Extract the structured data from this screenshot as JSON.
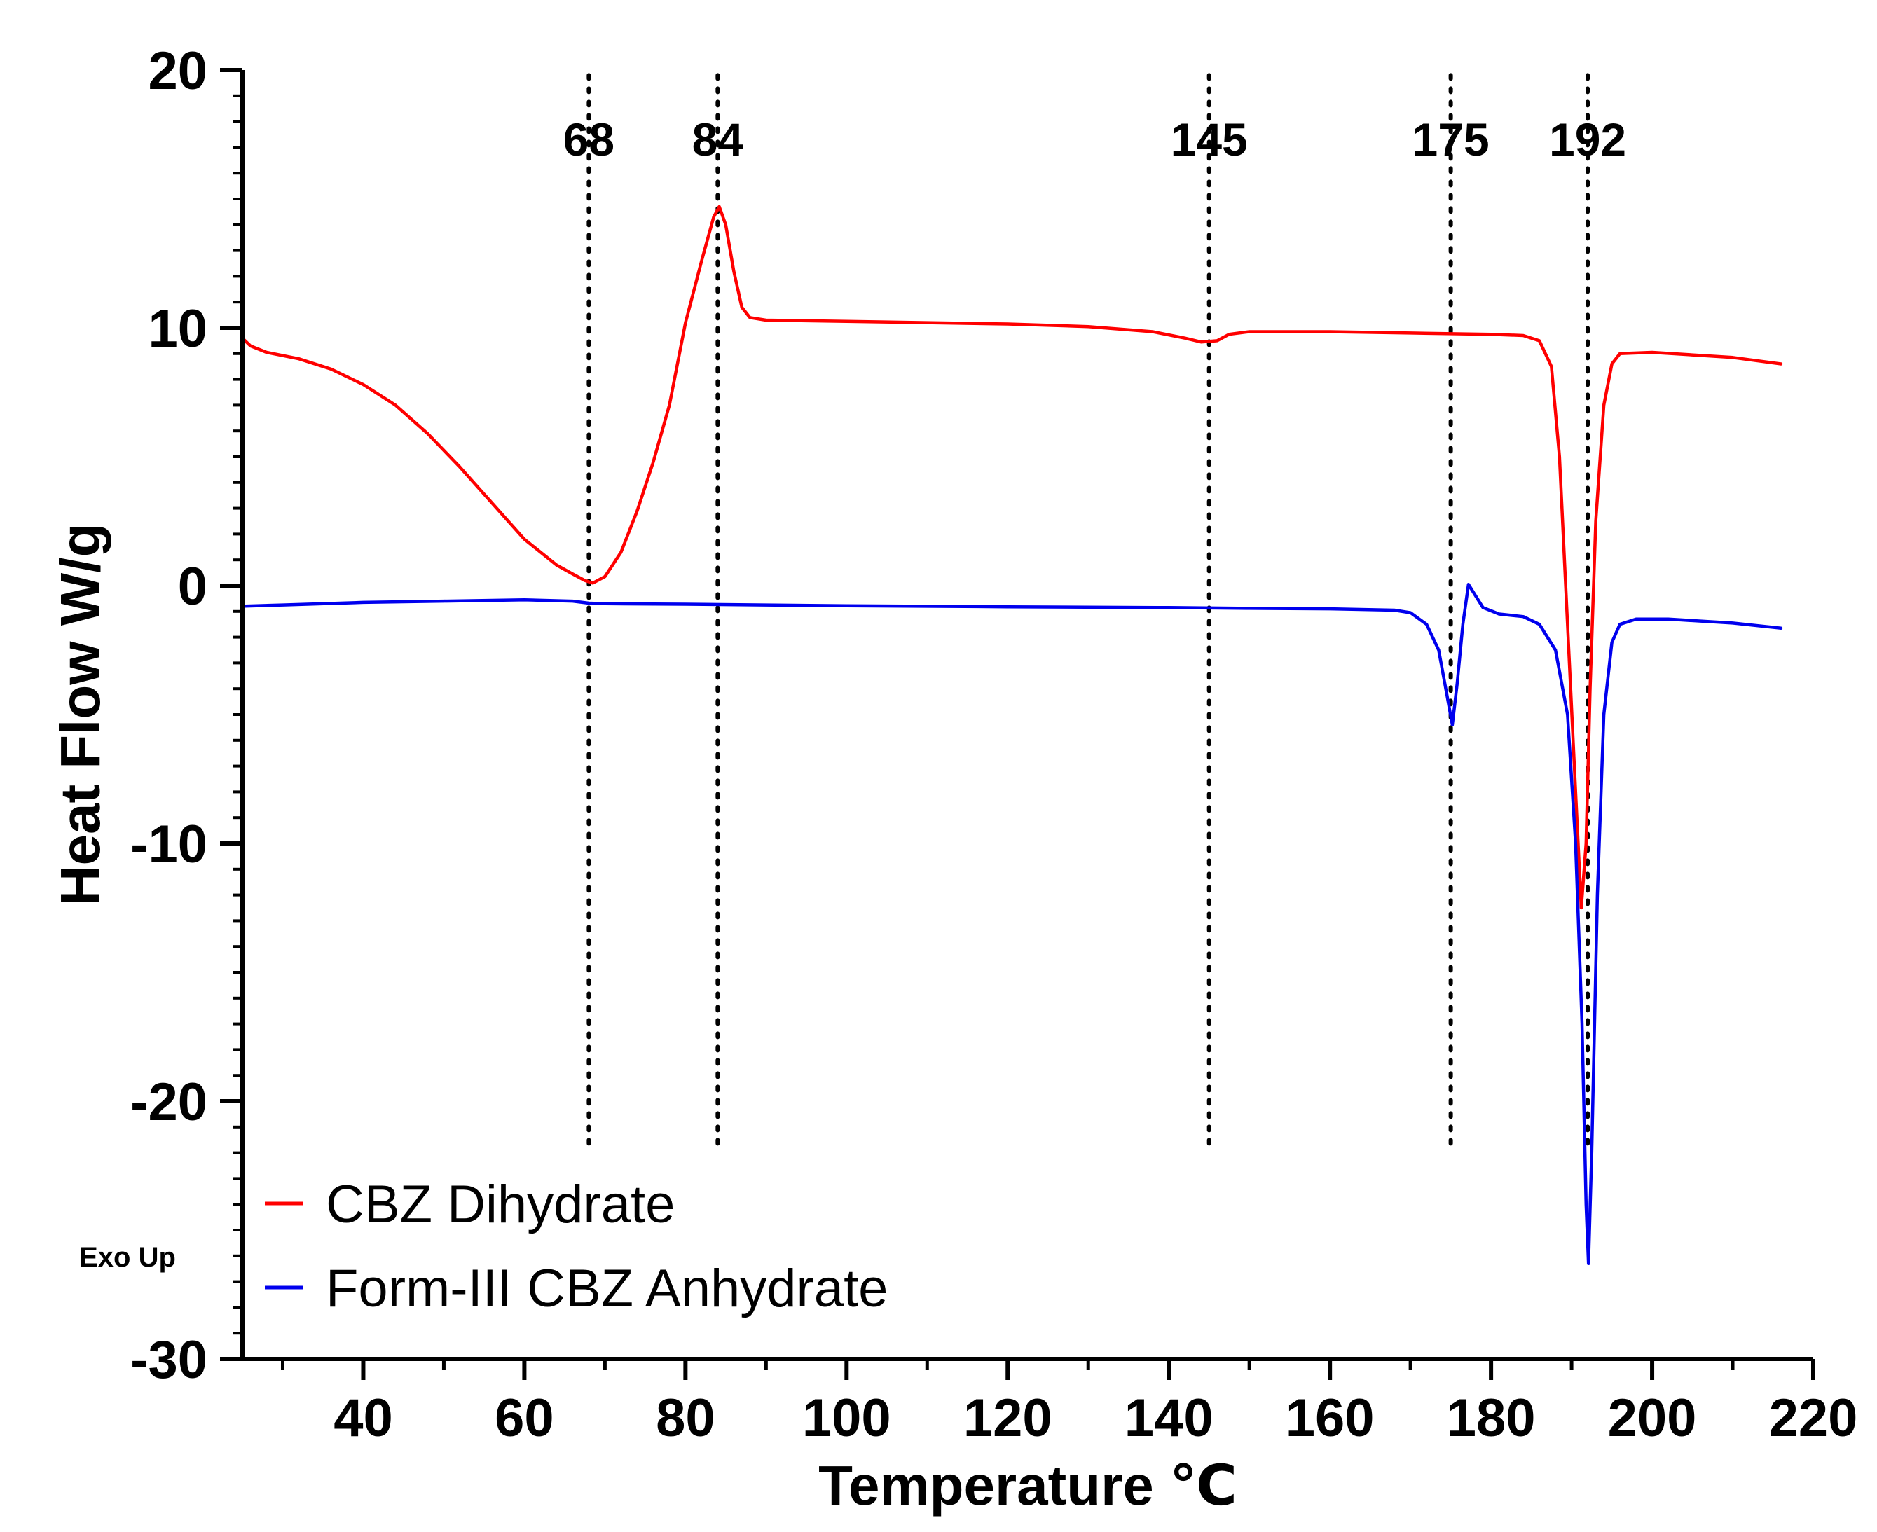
{
  "chart_data": {
    "type": "line",
    "title": "",
    "xlabel": "Temperature ℃",
    "ylabel": "Heat Flow W/g",
    "xlim": [
      25,
      220
    ],
    "ylim": [
      -30,
      20
    ],
    "xticks": [
      40,
      60,
      80,
      100,
      120,
      140,
      160,
      180,
      200,
      220
    ],
    "xtick_labels": [
      "40",
      "60",
      "80",
      "100",
      "120",
      "140",
      "160",
      "180",
      "200",
      "220"
    ],
    "yticks": [
      20,
      10,
      0,
      -10,
      -20,
      -30
    ],
    "ytick_labels": [
      "20",
      "10",
      "0",
      "-10",
      "-20",
      "-30"
    ],
    "grid": false,
    "legend_position": "bottom-left",
    "annotation": "Exo Up",
    "reference_lines": [
      {
        "x": 68,
        "label": "68"
      },
      {
        "x": 84,
        "label": "84"
      },
      {
        "x": 145,
        "label": "145"
      },
      {
        "x": 175,
        "label": "175"
      },
      {
        "x": 192,
        "label": "192"
      }
    ],
    "series": [
      {
        "name": "CBZ Dihydrate",
        "color": "#ff0000",
        "points": [
          [
            25,
            9.6
          ],
          [
            26,
            9.3
          ],
          [
            28,
            9.05
          ],
          [
            32,
            8.8
          ],
          [
            36,
            8.4
          ],
          [
            40,
            7.8
          ],
          [
            44,
            7.0
          ],
          [
            48,
            5.9
          ],
          [
            52,
            4.6
          ],
          [
            56,
            3.2
          ],
          [
            60,
            1.8
          ],
          [
            64,
            0.8
          ],
          [
            66,
            0.45
          ],
          [
            67.5,
            0.2
          ],
          [
            68.5,
            0.1
          ],
          [
            70,
            0.35
          ],
          [
            72,
            1.3
          ],
          [
            74,
            2.9
          ],
          [
            76,
            4.8
          ],
          [
            78,
            7.0
          ],
          [
            80,
            10.2
          ],
          [
            82,
            12.6
          ],
          [
            83.5,
            14.3
          ],
          [
            84.2,
            14.7
          ],
          [
            85,
            14.0
          ],
          [
            86,
            12.2
          ],
          [
            87,
            10.8
          ],
          [
            88,
            10.4
          ],
          [
            90,
            10.3
          ],
          [
            100,
            10.25
          ],
          [
            110,
            10.2
          ],
          [
            120,
            10.15
          ],
          [
            130,
            10.05
          ],
          [
            138,
            9.85
          ],
          [
            142,
            9.6
          ],
          [
            144,
            9.45
          ],
          [
            146,
            9.5
          ],
          [
            147.5,
            9.75
          ],
          [
            150,
            9.85
          ],
          [
            160,
            9.85
          ],
          [
            170,
            9.8
          ],
          [
            180,
            9.75
          ],
          [
            184,
            9.7
          ],
          [
            186,
            9.5
          ],
          [
            187.5,
            8.5
          ],
          [
            188.5,
            5.0
          ],
          [
            189.5,
            -1.5
          ],
          [
            190.5,
            -8.0
          ],
          [
            191.2,
            -12.5
          ],
          [
            191.8,
            -10.0
          ],
          [
            192.3,
            -4.0
          ],
          [
            193,
            2.5
          ],
          [
            194,
            7.0
          ],
          [
            195,
            8.6
          ],
          [
            196,
            9.0
          ],
          [
            200,
            9.05
          ],
          [
            210,
            8.85
          ],
          [
            216,
            8.6
          ]
        ]
      },
      {
        "name": "Form-III CBZ Anhydrate",
        "color": "#0000ee",
        "points": [
          [
            25,
            -0.8
          ],
          [
            30,
            -0.75
          ],
          [
            40,
            -0.65
          ],
          [
            50,
            -0.6
          ],
          [
            60,
            -0.55
          ],
          [
            66,
            -0.6
          ],
          [
            68,
            -0.68
          ],
          [
            70,
            -0.7
          ],
          [
            80,
            -0.72
          ],
          [
            100,
            -0.78
          ],
          [
            120,
            -0.82
          ],
          [
            140,
            -0.85
          ],
          [
            150,
            -0.88
          ],
          [
            160,
            -0.9
          ],
          [
            168,
            -0.95
          ],
          [
            170,
            -1.05
          ],
          [
            172,
            -1.5
          ],
          [
            173.5,
            -2.5
          ],
          [
            174.5,
            -4.2
          ],
          [
            175.2,
            -5.4
          ],
          [
            175.8,
            -3.8
          ],
          [
            176.5,
            -1.5
          ],
          [
            177.2,
            0.05
          ],
          [
            178,
            -0.35
          ],
          [
            179,
            -0.85
          ],
          [
            181,
            -1.1
          ],
          [
            184,
            -1.2
          ],
          [
            186,
            -1.5
          ],
          [
            188,
            -2.5
          ],
          [
            189.5,
            -5.0
          ],
          [
            190.5,
            -10.0
          ],
          [
            191.3,
            -17.0
          ],
          [
            191.8,
            -24.0
          ],
          [
            192.1,
            -26.3
          ],
          [
            192.5,
            -22.0
          ],
          [
            193.2,
            -12.0
          ],
          [
            194,
            -5.0
          ],
          [
            195,
            -2.2
          ],
          [
            196,
            -1.5
          ],
          [
            198,
            -1.3
          ],
          [
            202,
            -1.3
          ],
          [
            210,
            -1.45
          ],
          [
            216,
            -1.65
          ]
        ]
      }
    ]
  }
}
